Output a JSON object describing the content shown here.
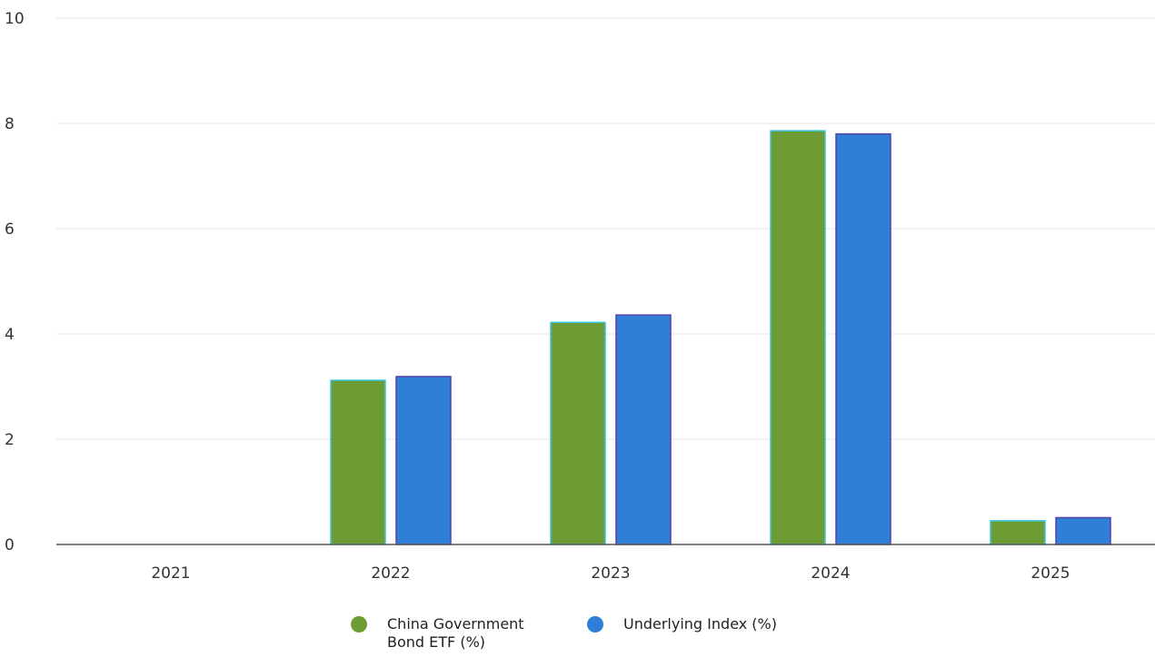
{
  "chart_data": {
    "type": "bar",
    "categories": [
      "2021",
      "2022",
      "2023",
      "2024",
      "2025"
    ],
    "series": [
      {
        "name": "China Government Bond ETF (%)",
        "color": "#6d9b34",
        "edge_color": "#37c8e0",
        "values": [
          null,
          3.12,
          4.22,
          7.86,
          0.45
        ]
      },
      {
        "name": "Underlying Index (%)",
        "color": "#2f7fd6",
        "edge_color": "#5542a8",
        "values": [
          null,
          3.19,
          4.36,
          7.8,
          0.51
        ]
      }
    ],
    "ylim": [
      0,
      10
    ],
    "yticks": [
      "0",
      "2",
      "4",
      "6",
      "8",
      "10"
    ],
    "grid": true,
    "legend_position": "bottom"
  }
}
